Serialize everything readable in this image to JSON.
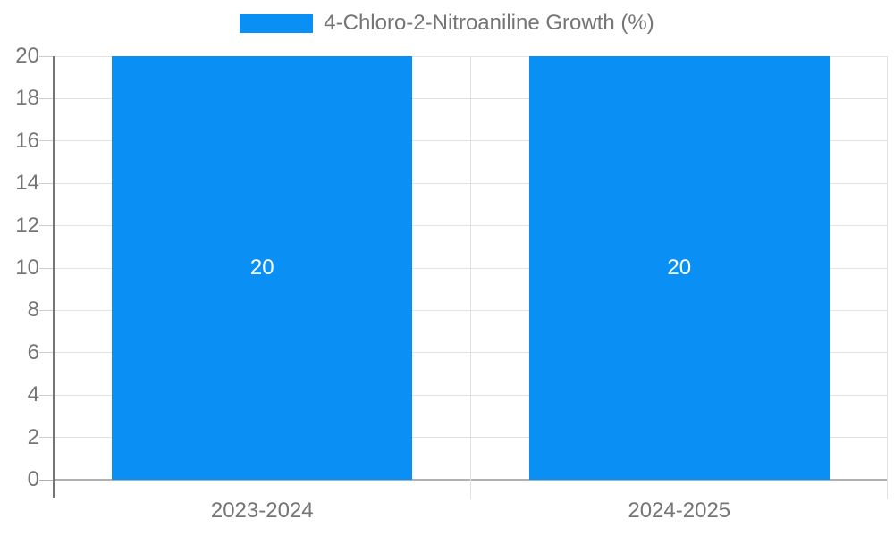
{
  "legend": {
    "label": "4-Chloro-2-Nitroaniline Growth (%)"
  },
  "chart_data": {
    "type": "bar",
    "title": "",
    "categories": [
      "2023-2024",
      "2024-2025"
    ],
    "series": [
      {
        "name": "4-Chloro-2-Nitroaniline Growth (%)",
        "values": [
          20,
          20
        ]
      }
    ],
    "bar_value_labels": [
      "20",
      "20"
    ],
    "xlabel": "",
    "ylabel": "",
    "ylim": [
      0,
      20
    ],
    "yticks": [
      0,
      2,
      4,
      6,
      8,
      10,
      12,
      14,
      16,
      18,
      20
    ],
    "grid": true,
    "legend_position": "top-center",
    "colors": {
      "bar": "#0a90f5",
      "gridline": "#e2e2e2",
      "baseline": "#b0b0b0",
      "axis_line": "#757575",
      "tick": "#cccccc",
      "divider": "#e2e2e2",
      "text": "#757575",
      "bar_label": "#ffffff",
      "background": "#ffffff"
    }
  }
}
